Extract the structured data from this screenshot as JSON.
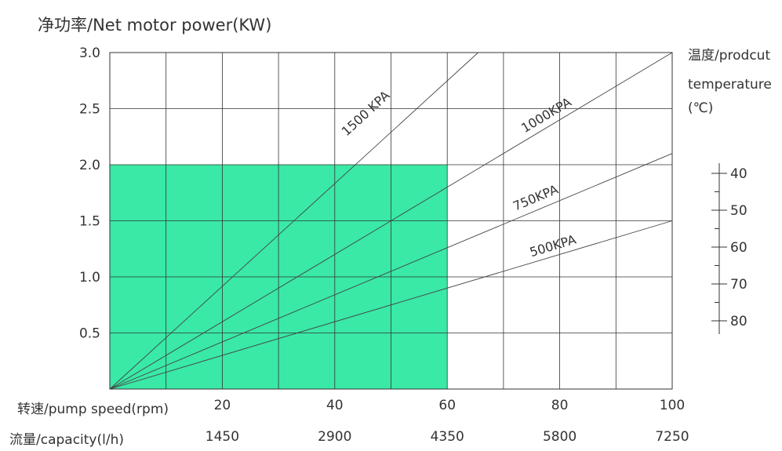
{
  "chart_data": {
    "type": "line",
    "title": "净功率/Net motor power(KW)",
    "xlabel": "转速/pump speed(rpm)",
    "x2label": "流量/capacity(l/h)",
    "right_axis_label": [
      "温度/prodcut",
      "temperature",
      "(℃)"
    ],
    "xlim": [
      0,
      100
    ],
    "ylim": [
      0,
      3.0
    ],
    "x_ticks": [
      20,
      40,
      60,
      80,
      100
    ],
    "x_tick_labels": [
      "20",
      "40",
      "60",
      "80",
      "100"
    ],
    "x2_tick_labels": [
      "1450",
      "2900",
      "4350",
      "5800",
      "7250"
    ],
    "y_ticks": [
      0.5,
      1.0,
      1.5,
      2.0,
      2.5,
      3.0
    ],
    "y_tick_labels": [
      "0.5",
      "1.0",
      "1.5",
      "2.0",
      "2.5",
      "3.0"
    ],
    "x_grid": [
      10,
      20,
      30,
      40,
      50,
      60,
      70,
      80,
      90,
      100
    ],
    "y_grid": [
      0.5,
      1.0,
      1.5,
      2.0,
      2.5,
      3.0
    ],
    "grid": true,
    "temperature_scale": [
      "40",
      "50",
      "60",
      "70",
      "80"
    ],
    "shaded_region": {
      "x": [
        0,
        60
      ],
      "y": [
        0,
        2.0
      ],
      "color": "#2ee8a0"
    },
    "series": [
      {
        "name": "1500 KPA",
        "x": [
          0,
          65.5
        ],
        "y": [
          0,
          3.0
        ],
        "label_at": [
          46,
          2.43
        ]
      },
      {
        "name": "1000KPA",
        "x": [
          0,
          100
        ],
        "y": [
          0,
          3.0
        ],
        "label_at": [
          78,
          2.41
        ]
      },
      {
        "name": "750KPA",
        "x": [
          0,
          100
        ],
        "y": [
          0,
          2.1
        ],
        "label_at": [
          76,
          1.67
        ]
      },
      {
        "name": "500KPA",
        "x": [
          0,
          100
        ],
        "y": [
          0,
          1.5
        ],
        "label_at": [
          79,
          1.24
        ]
      }
    ]
  }
}
